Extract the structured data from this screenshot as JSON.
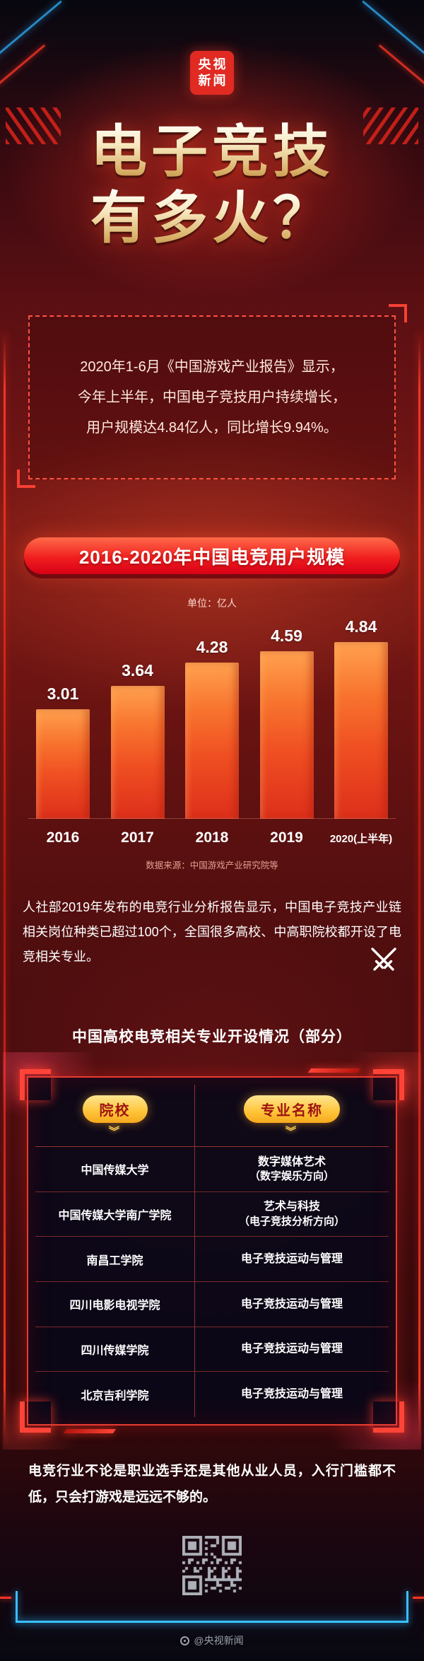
{
  "brand": {
    "logo_top": "央视",
    "logo_bottom": "新闻"
  },
  "title": {
    "line1": "电子竞技",
    "line2": "有多火？"
  },
  "intro": {
    "line1": "2020年1-6月《中国游戏产业报告》显示，",
    "line2": "今年上半年，中国电子竞技用户持续增长，",
    "line3": "用户规模达4.84亿人，同比增长9.94%。"
  },
  "chart_data": [
    {
      "type": "bar",
      "title": "2016-2020年中国电竞用户规模",
      "unit_label": "单位：亿人",
      "categories": [
        "2016",
        "2017",
        "2018",
        "2019",
        "2020(上半年)"
      ],
      "values": [
        3.01,
        3.64,
        4.28,
        4.59,
        4.84
      ],
      "ylim": [
        0,
        4.84
      ],
      "source": "数据来源：中国游戏产业研究院等",
      "bar_gradient": [
        "#ffa14f",
        "#dd2f1b"
      ],
      "legend": "none",
      "grid": "off"
    },
    {
      "type": "table",
      "title": "中国高校电竞相关专业开设情况（部分）",
      "columns": [
        "院校",
        "专业名称"
      ],
      "rows": [
        {
          "school": "中国传媒大学",
          "major_line1": "数字媒体艺术",
          "major_line2": "（数字娱乐方向）"
        },
        {
          "school": "中国传媒大学南广学院",
          "major_line1": "艺术与科技",
          "major_line2": "（电子竞技分析方向）"
        },
        {
          "school": "南昌工学院",
          "major_line1": "电子竞技运动与管理",
          "major_line2": ""
        },
        {
          "school": "四川电影电视学院",
          "major_line1": "电子竞技运动与管理",
          "major_line2": ""
        },
        {
          "school": "四川传媒学院",
          "major_line1": "电子竞技运动与管理",
          "major_line2": ""
        },
        {
          "school": "北京吉利学院",
          "major_line1": "电子竞技运动与管理",
          "major_line2": ""
        }
      ]
    }
  ],
  "industry_note": "人社部2019年发布的电竞行业分析报告显示，中国电子竞技产业链相关岗位种类已超过100个，全国很多高校、中高职院校都开设了电竞相关专业。",
  "closing_note": "电竞行业不论是职业选手还是其他从业人员，入行门槛都不低，只会打游戏是远远不够的。",
  "footer": {
    "watermark": "@央视新闻"
  },
  "icons": {
    "double_chevron": "《"
  },
  "colors": {
    "neon_red": "#ff3526",
    "neon_blue": "#3ac1ff",
    "banner_red": "#e8001f",
    "gold": "#ffc438",
    "bar_orange": "#f8742e"
  }
}
